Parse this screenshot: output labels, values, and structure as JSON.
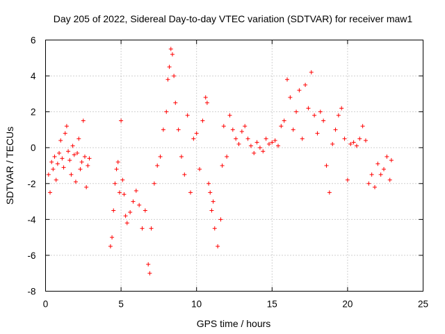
{
  "chart_data": {
    "type": "scatter",
    "title": "Day 205 of 2022, Sidereal Day-to-day VTEC variation (SDTVAR) for receiver maw1",
    "xlabel": "GPS time / hours",
    "ylabel": "SDTVAR / TECUs",
    "xlim": [
      0,
      25
    ],
    "ylim": [
      -8,
      6
    ],
    "xticks": [
      0,
      5,
      10,
      15,
      20,
      25
    ],
    "yticks": [
      -8,
      -6,
      -4,
      -2,
      0,
      2,
      4,
      6
    ],
    "grid": true,
    "marker": "+",
    "color": "#ff0000",
    "series": [
      {
        "name": "SDTVAR",
        "x": [
          0.2,
          0.3,
          0.4,
          0.5,
          0.6,
          0.7,
          0.8,
          0.9,
          1.0,
          1.1,
          1.2,
          1.3,
          1.4,
          1.5,
          1.6,
          1.7,
          1.8,
          1.9,
          2.0,
          2.1,
          2.2,
          2.3,
          2.4,
          2.5,
          2.6,
          2.7,
          2.8,
          2.9,
          4.3,
          4.4,
          4.5,
          4.6,
          4.7,
          4.8,
          4.9,
          5.0,
          5.1,
          5.2,
          5.3,
          5.4,
          5.6,
          5.8,
          6.0,
          6.2,
          6.4,
          6.6,
          6.8,
          6.9,
          7.0,
          7.2,
          7.4,
          7.6,
          7.8,
          8.0,
          8.1,
          8.2,
          8.3,
          8.4,
          8.5,
          8.6,
          8.8,
          9.0,
          9.2,
          9.4,
          9.6,
          9.8,
          10.0,
          10.2,
          10.4,
          10.6,
          10.7,
          10.8,
          10.9,
          11.0,
          11.1,
          11.2,
          11.4,
          11.6,
          11.7,
          11.8,
          12.0,
          12.2,
          12.4,
          12.6,
          12.8,
          13.0,
          13.2,
          13.4,
          13.6,
          13.8,
          14.0,
          14.2,
          14.4,
          14.6,
          14.8,
          15.0,
          15.2,
          15.4,
          15.6,
          15.8,
          16.0,
          16.2,
          16.4,
          16.6,
          16.8,
          17.0,
          17.2,
          17.4,
          17.6,
          17.8,
          18.0,
          18.2,
          18.4,
          18.6,
          18.8,
          19.0,
          19.2,
          19.4,
          19.6,
          19.8,
          20.0,
          20.2,
          20.4,
          20.6,
          20.8,
          21.0,
          21.2,
          21.4,
          21.6,
          21.8,
          22.0,
          22.2,
          22.4,
          22.6,
          22.8,
          22.9
        ],
        "y": [
          -1.5,
          -2.5,
          -0.8,
          -1.2,
          -0.5,
          -1.8,
          -0.9,
          -0.3,
          0.4,
          -0.6,
          -1.1,
          0.8,
          1.2,
          -0.2,
          -0.7,
          -1.5,
          0.1,
          -0.4,
          -1.9,
          -0.3,
          0.5,
          -1.2,
          -0.8,
          1.5,
          -0.5,
          -2.2,
          -1.0,
          -0.6,
          -5.5,
          -5.0,
          -3.5,
          -2.0,
          -1.2,
          -0.8,
          -2.5,
          1.5,
          -1.8,
          -2.6,
          -3.8,
          -4.2,
          -3.6,
          -3.0,
          -2.4,
          -3.2,
          -4.5,
          -3.5,
          -6.5,
          -7.0,
          -4.5,
          -2.0,
          -1.0,
          -0.5,
          1.0,
          2.0,
          3.8,
          4.5,
          5.5,
          5.2,
          4.0,
          2.5,
          1.0,
          -0.5,
          -1.5,
          1.8,
          -2.5,
          0.5,
          0.8,
          -1.2,
          1.5,
          2.8,
          2.5,
          -2.0,
          -2.5,
          -3.5,
          -3.0,
          -4.5,
          -5.5,
          -4.0,
          -1.0,
          1.2,
          -0.5,
          1.8,
          1.0,
          0.5,
          0.2,
          0.9,
          1.2,
          0.5,
          0.1,
          -0.3,
          0.3,
          0.0,
          -0.2,
          0.5,
          0.2,
          0.3,
          0.4,
          0.1,
          1.2,
          1.5,
          3.8,
          2.8,
          1.0,
          2.0,
          3.2,
          0.5,
          3.5,
          2.2,
          4.2,
          1.8,
          0.8,
          2.0,
          1.5,
          -1.0,
          -2.5,
          0.2,
          1.0,
          1.8,
          2.2,
          0.5,
          -1.8,
          0.2,
          0.3,
          0.1,
          0.5,
          1.2,
          0.4,
          -2.0,
          -1.5,
          -2.2,
          -0.9,
          -1.5,
          -1.2,
          -0.5,
          -1.8,
          -0.7
        ]
      }
    ]
  }
}
